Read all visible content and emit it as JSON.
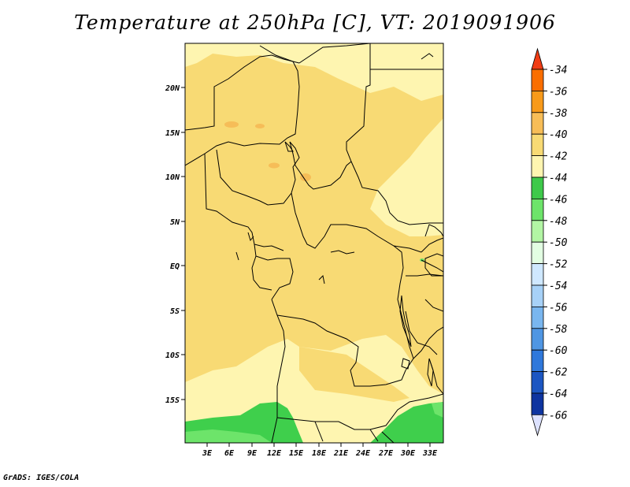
{
  "title": "Temperature at 250hPa [C], VT: 2019091906",
  "credit": "GrADS: IGES/COLA",
  "map": {
    "y_ticks": [
      "20N",
      "15N",
      "10N",
      "5N",
      "EQ",
      "5S",
      "10S",
      "15S"
    ],
    "x_ticks": [
      "3E",
      "6E",
      "9E",
      "12E",
      "15E",
      "18E",
      "21E",
      "24E",
      "27E",
      "30E",
      "33E"
    ],
    "field": "Temperature at 250hPa",
    "units": "C",
    "dominant_colors": {
      "-40": "#f8da74",
      "-42": "#fef5b0",
      "-38": "#f6bd58",
      "-44": "#3fcf4c",
      "-46": "#6de46a"
    }
  },
  "colorbar": {
    "levels": [
      "-34",
      "-36",
      "-38",
      "-40",
      "-42",
      "-44",
      "-46",
      "-48",
      "-50",
      "-52",
      "-54",
      "-56",
      "-58",
      "-60",
      "-62",
      "-64",
      "-66"
    ],
    "colors": [
      "#f03c14",
      "#fa6e00",
      "#f89a1a",
      "#f7bd57",
      "#f8da74",
      "#fef5b0",
      "#3ec94a",
      "#6de46a",
      "#b2f5a4",
      "#e2fee2",
      "#cfe8ff",
      "#a7d1f7",
      "#79b6ef",
      "#4f96e3",
      "#2f78db",
      "#1c56c2",
      "#0e34a0",
      "#08156d"
    ],
    "top_arrow_color": "#f03c14",
    "bottom_arrow_color": "#dde2ff"
  }
}
